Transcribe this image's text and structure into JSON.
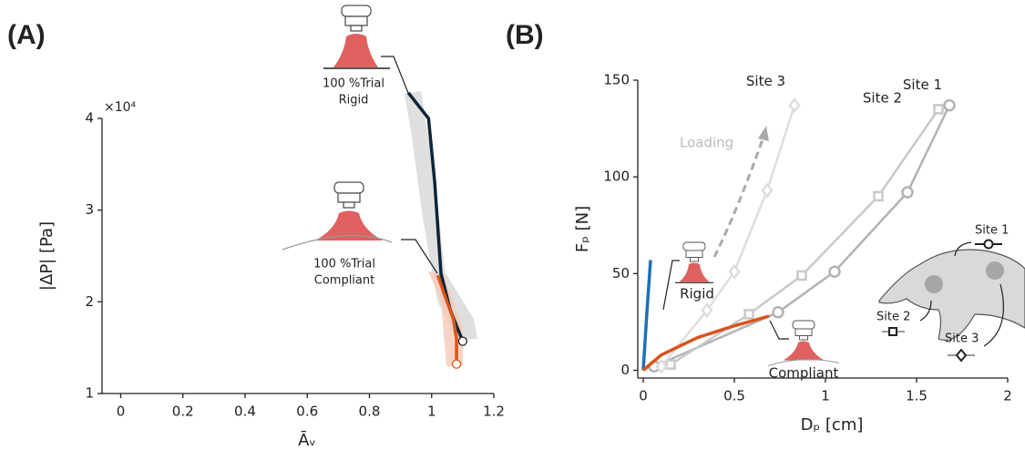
{
  "chart_data": [
    {
      "type": "line",
      "panel_label": "(A)",
      "x_label": "Āᵥ",
      "y_label": "|ΔP| [Pa]",
      "y_multiplier": "×10⁴",
      "xlim": [
        -0.06,
        1.2
      ],
      "ylim": [
        1,
        4
      ],
      "xticks": [
        0,
        0.2,
        0.4,
        0.6,
        0.8,
        1,
        1.2
      ],
      "yticks": [
        1,
        2,
        3,
        4
      ],
      "series": [
        {
          "label_lines": [
            "100 %Trial",
            "Rigid"
          ],
          "color": "#0d2438",
          "band_color": "#d9d9d9",
          "x": [
            0.925,
            0.99,
            1.01,
            1.03,
            1.06,
            1.1
          ],
          "values": [
            4.28,
            4.0,
            3.3,
            2.31,
            1.91,
            1.57
          ]
        },
        {
          "label_lines": [
            "100 %Trial",
            "Compliant"
          ],
          "color": "#d9541e",
          "band_color": "#f6c9b5",
          "x": [
            1.02,
            1.04,
            1.07,
            1.08,
            1.08
          ],
          "values": [
            2.29,
            2.09,
            1.81,
            1.6,
            1.32
          ]
        }
      ]
    },
    {
      "type": "line",
      "panel_label": "(B)",
      "x_label": "Dₚ [cm]",
      "y_label": "Fₚ [N]",
      "xlim": [
        -0.03,
        2
      ],
      "ylim": [
        -4,
        150
      ],
      "xticks": [
        0,
        0.5,
        1,
        1.5,
        2
      ],
      "yticks": [
        0,
        50,
        100,
        150
      ],
      "annotation": "Loading",
      "series": [
        {
          "name": "Site 1",
          "marker": "circle",
          "color": "#b3b3b3",
          "x": [
            0.06,
            0.74,
            1.05,
            1.45,
            1.68
          ],
          "values": [
            2,
            30,
            51,
            92,
            137
          ]
        },
        {
          "name": "Site 2",
          "marker": "square",
          "color": "#c9c9c9",
          "x": [
            0.15,
            0.58,
            0.87,
            1.29,
            1.62
          ],
          "values": [
            3,
            29,
            49,
            90,
            135
          ]
        },
        {
          "name": "Site 3",
          "marker": "diamond",
          "color": "#dedede",
          "x": [
            0.1,
            0.35,
            0.5,
            0.68,
            0.83
          ],
          "values": [
            2,
            31,
            51,
            93,
            137
          ]
        },
        {
          "name": "Rigid",
          "color": "#1f6fb5",
          "x": [
            0,
            0.02,
            0.04
          ],
          "values": [
            0,
            30,
            57
          ]
        },
        {
          "name": "Compliant",
          "color": "#d9541e",
          "x": [
            0,
            0.1,
            0.3,
            0.5,
            0.69
          ],
          "values": [
            0,
            8,
            17,
            23,
            28
          ]
        }
      ]
    }
  ]
}
